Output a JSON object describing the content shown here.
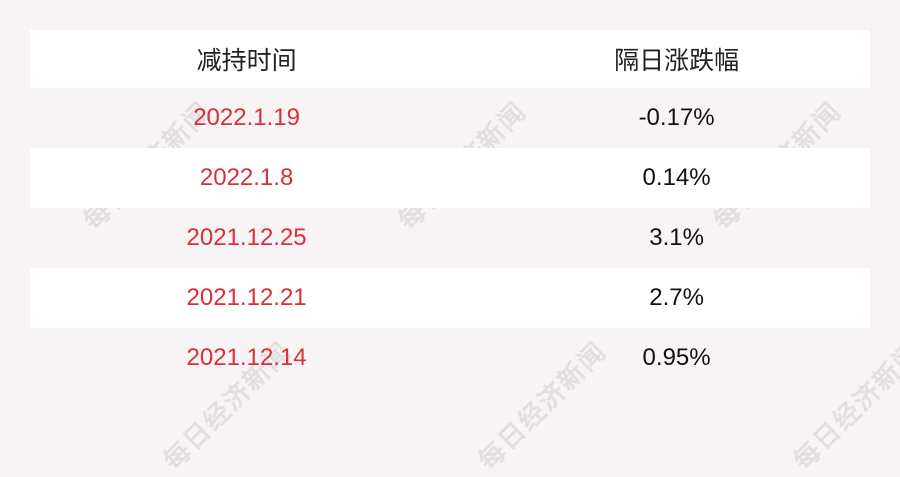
{
  "header": {
    "col1": "减持时间",
    "col2": "隔日涨跌幅"
  },
  "rows": [
    {
      "date": "2022.1.19",
      "change": "-0.17%"
    },
    {
      "date": "2022.1.8",
      "change": "0.14%"
    },
    {
      "date": "2021.12.25",
      "change": "3.1%"
    },
    {
      "date": "2021.12.21",
      "change": "2.7%"
    },
    {
      "date": "2021.12.14",
      "change": "0.95%"
    }
  ],
  "watermark": "每日经济新闻",
  "colors": {
    "date": "#d9303a",
    "background": "#f8f4f5"
  }
}
